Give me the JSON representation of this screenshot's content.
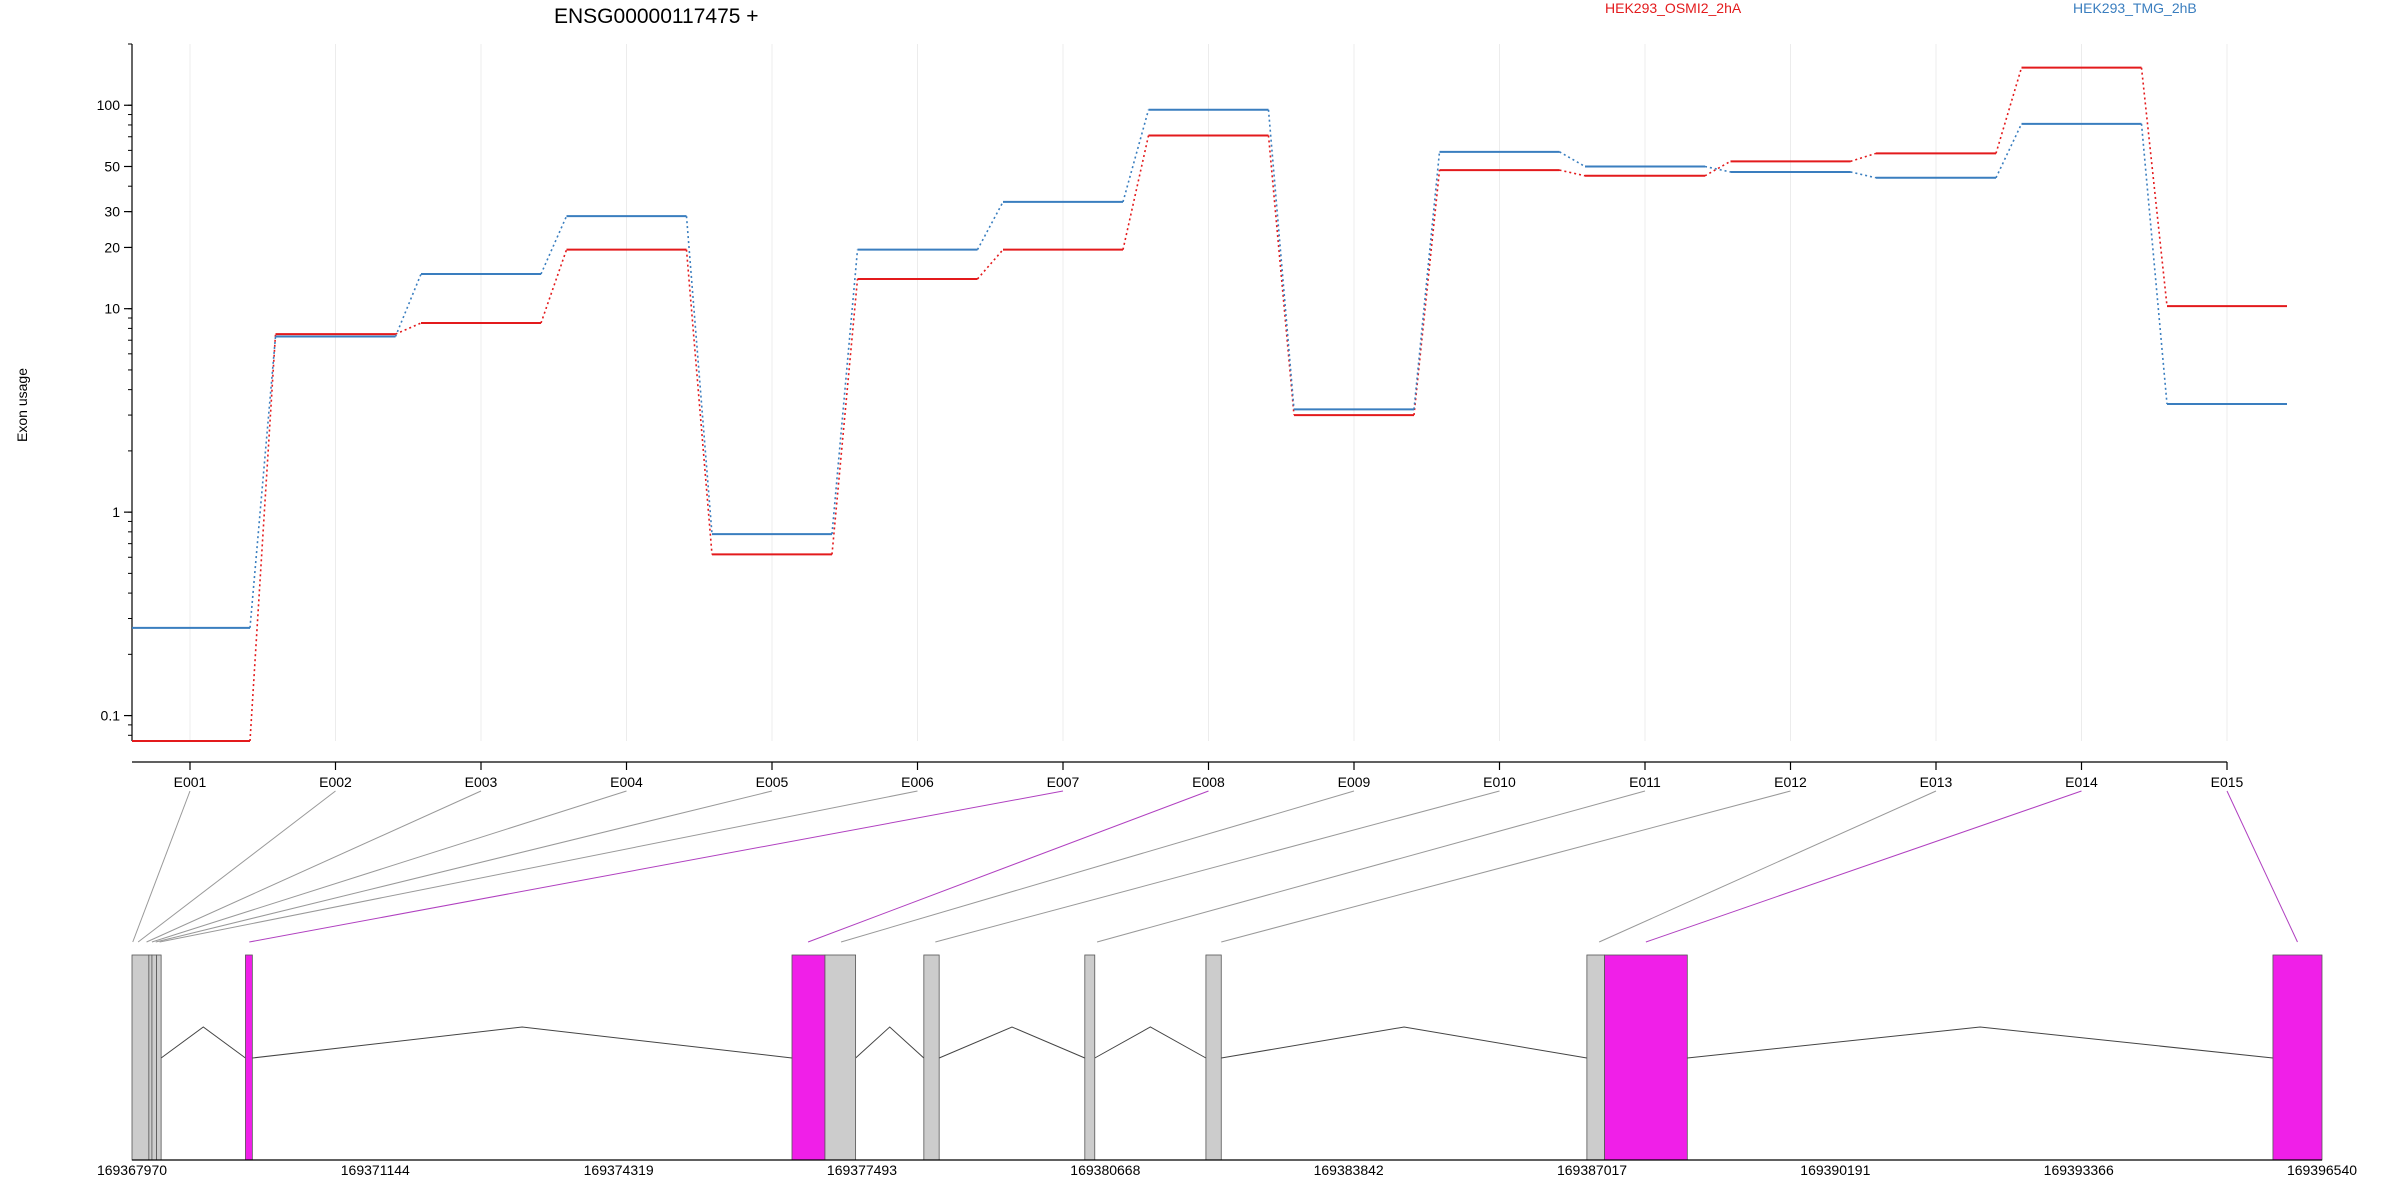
{
  "chart_data": {
    "type": "line",
    "title": "ENSG00000117475 +",
    "ylabel": "Exon usage",
    "yscale": "log",
    "ylim": [
      0.075,
      200
    ],
    "yticks": [
      0.1,
      1,
      10,
      20,
      30,
      50,
      100
    ],
    "ytick_labels": [
      "0.1",
      "1",
      "10",
      "20",
      "30",
      "50",
      "100"
    ],
    "grid": "vertical",
    "legend_placement": "top",
    "categories": [
      "E001",
      "E002",
      "E003",
      "E004",
      "E005",
      "E006",
      "E007",
      "E008",
      "E009",
      "E010",
      "E011",
      "E012",
      "E013",
      "E014",
      "E015"
    ],
    "series": [
      {
        "name": "HEK293_OSMI2_2hA",
        "color": "#e31a1c",
        "values": [
          0.075,
          7.5,
          8.5,
          19.5,
          0.62,
          14,
          19.5,
          71,
          3.0,
          48,
          45,
          53,
          58,
          153,
          10.3
        ]
      },
      {
        "name": "HEK293_TMG_2hB",
        "color": "#3a7ebf",
        "values": [
          0.27,
          7.3,
          14.8,
          28.5,
          0.78,
          19.5,
          33.5,
          95,
          3.2,
          59,
          50,
          47,
          44,
          81,
          3.4
        ]
      }
    ],
    "gene_model": {
      "coord_range": [
        169367970,
        169396540
      ],
      "axis_ticks": [
        169367970,
        169371144,
        169374319,
        169377493,
        169380668,
        169383842,
        169387017,
        169390191,
        169393366,
        169396540
      ],
      "axis_tick_labels": [
        "169367970",
        "169371144",
        "169374319",
        "169377493",
        "169380668",
        "169383842",
        "169387017",
        "169390191",
        "169393366",
        "169396540"
      ],
      "exon_color": "#cccccc",
      "highlight_color": "#f01fe8",
      "exons": [
        {
          "id": "E001",
          "start": 169367970,
          "end": 169368190,
          "highlight": false
        },
        {
          "id": "E002",
          "start": 169368190,
          "end": 169368230,
          "highlight": false
        },
        {
          "id": "E003",
          "start": 169368230,
          "end": 169368290,
          "highlight": false
        },
        {
          "id": "E004",
          "start": 169368290,
          "end": 169368350,
          "highlight": false
        },
        {
          "id": "E005",
          "start": 169369450,
          "end": 169369540,
          "highlight": true
        },
        {
          "id": "E006",
          "start": 169376580,
          "end": 169377010,
          "highlight": true
        },
        {
          "id": "E007",
          "start": 169377010,
          "end": 169377410,
          "highlight": false
        },
        {
          "id": "E008",
          "start": 169378300,
          "end": 169378500,
          "highlight": false
        },
        {
          "id": "E009",
          "start": 169380400,
          "end": 169380530,
          "highlight": false
        },
        {
          "id": "E010",
          "start": 169381980,
          "end": 169382180,
          "highlight": false
        },
        {
          "id": "E011",
          "start": 169386950,
          "end": 169387180,
          "highlight": false
        },
        {
          "id": "E012",
          "start": 169387180,
          "end": 169388260,
          "highlight": true
        },
        {
          "id": "E013",
          "start": 169395900,
          "end": 169396540,
          "highlight": true
        }
      ],
      "mapping_lines": [
        {
          "exon": "E001",
          "gene_x": 169367980,
          "highlight": false
        },
        {
          "exon": "E002",
          "gene_x": 169368050,
          "highlight": false
        },
        {
          "exon": "E003",
          "gene_x": 169368160,
          "highlight": false
        },
        {
          "exon": "E004",
          "gene_x": 169368230,
          "highlight": false
        },
        {
          "exon": "E005",
          "gene_x": 169368280,
          "highlight": false
        },
        {
          "exon": "E006",
          "gene_x": 169368330,
          "highlight": false
        },
        {
          "exon": "E007",
          "gene_x": 169369500,
          "highlight": true
        },
        {
          "exon": "E008",
          "gene_x": 169376790,
          "highlight": true
        },
        {
          "exon": "E009",
          "gene_x": 169377220,
          "highlight": false
        },
        {
          "exon": "E010",
          "gene_x": 169378450,
          "highlight": false
        },
        {
          "exon": "E011",
          "gene_x": 169380560,
          "highlight": false
        },
        {
          "exon": "E012",
          "gene_x": 169382180,
          "highlight": false
        },
        {
          "exon": "E013",
          "gene_x": 169387110,
          "highlight": false
        },
        {
          "exon": "E014",
          "gene_x": 169387720,
          "highlight": true
        },
        {
          "exon": "E015",
          "gene_x": 169396220,
          "highlight": true
        }
      ]
    }
  }
}
